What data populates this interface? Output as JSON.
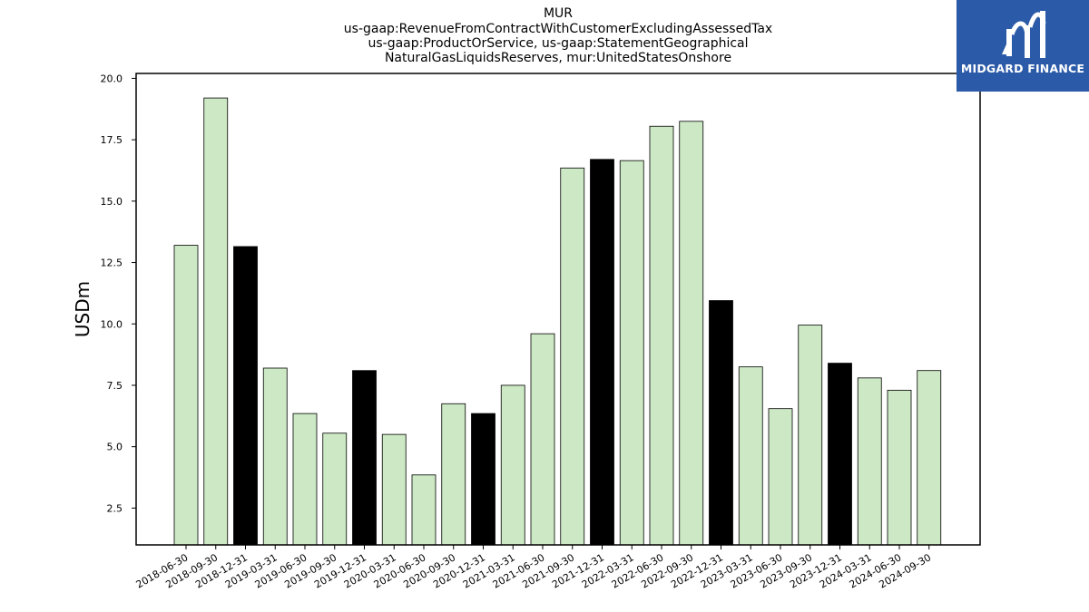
{
  "title_lines": [
    "MUR",
    "us-gaap:RevenueFromContractWithCustomerExcludingAssessedTax",
    "us-gaap:ProductOrService, us-gaap:StatementGeographical",
    "NaturalGasLiquidsReserves, mur:UnitedStatesOnshore"
  ],
  "logo": {
    "text": "MIDGARD FINANCE",
    "background": "#2b5aa8"
  },
  "colors": {
    "default_bar": "#cce8c4",
    "highlight_bar": "#000000",
    "edge": "#000000"
  },
  "chart_data": {
    "type": "bar",
    "ylabel": "USDm",
    "ylim": [
      1.0,
      20.2
    ],
    "yticks": [
      "2.5",
      "5.0",
      "7.5",
      "10.0",
      "12.5",
      "15.0",
      "17.5",
      "20.0"
    ],
    "categories": [
      "2018-06-30",
      "2018-09-30",
      "2018-12-31",
      "2019-03-31",
      "2019-06-30",
      "2019-09-30",
      "2019-12-31",
      "2020-03-31",
      "2020-06-30",
      "2020-09-30",
      "2020-12-31",
      "2021-03-31",
      "2021-06-30",
      "2021-09-30",
      "2021-12-31",
      "2022-03-31",
      "2022-06-30",
      "2022-09-30",
      "2022-12-31",
      "2023-03-31",
      "2023-06-30",
      "2023-09-30",
      "2023-12-31",
      "2024-03-31",
      "2024-06-30",
      "2024-09-30"
    ],
    "values": [
      13.2,
      19.2,
      13.15,
      8.2,
      6.35,
      5.55,
      8.1,
      5.5,
      3.85,
      6.75,
      6.35,
      7.5,
      9.6,
      16.35,
      16.7,
      16.65,
      18.05,
      18.25,
      10.95,
      8.25,
      6.55,
      9.95,
      8.4,
      7.8,
      7.3,
      8.1
    ],
    "highlighted": [
      false,
      false,
      true,
      false,
      false,
      false,
      true,
      false,
      false,
      false,
      true,
      false,
      false,
      false,
      true,
      false,
      false,
      false,
      true,
      false,
      false,
      false,
      true,
      false,
      false,
      false
    ],
    "grid": false,
    "legend": "none"
  }
}
